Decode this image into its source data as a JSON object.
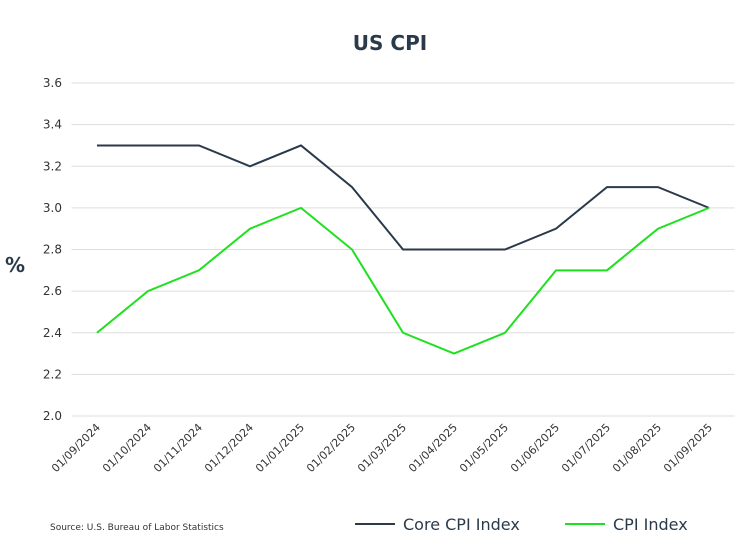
{
  "chart_data": {
    "type": "line",
    "title": "US CPI",
    "y_label": "%",
    "source": "Source: U.S. Bureau of Labor Statistics",
    "categories": [
      "01/09/2024",
      "01/10/2024",
      "01/11/2024",
      "01/12/2024",
      "01/01/2025",
      "01/02/2025",
      "01/03/2025",
      "01/04/2025",
      "01/05/2025",
      "01/06/2025",
      "01/07/2025",
      "01/08/2025",
      "01/09/2025"
    ],
    "series": [
      {
        "name": "Core CPI Index",
        "color": "#2b3a4a",
        "values": [
          3.3,
          3.3,
          3.3,
          3.2,
          3.3,
          3.1,
          2.8,
          2.8,
          2.8,
          2.9,
          3.1,
          3.1,
          3.0
        ]
      },
      {
        "name": "CPI Index",
        "color": "#1fe01f",
        "values": [
          2.4,
          2.6,
          2.7,
          2.9,
          3.0,
          2.8,
          2.4,
          2.3,
          2.4,
          2.7,
          2.7,
          2.9,
          3.0
        ]
      }
    ],
    "ylim": [
      2.0,
      3.6
    ],
    "yticks": [
      {
        "value": 2.0,
        "label": "2.0"
      },
      2.2,
      2.4,
      2.6,
      2.8,
      {
        "value": 3.0,
        "label": "3.0"
      },
      3.2,
      3.4,
      3.6
    ],
    "grid": true,
    "legend": "bottom-right"
  }
}
